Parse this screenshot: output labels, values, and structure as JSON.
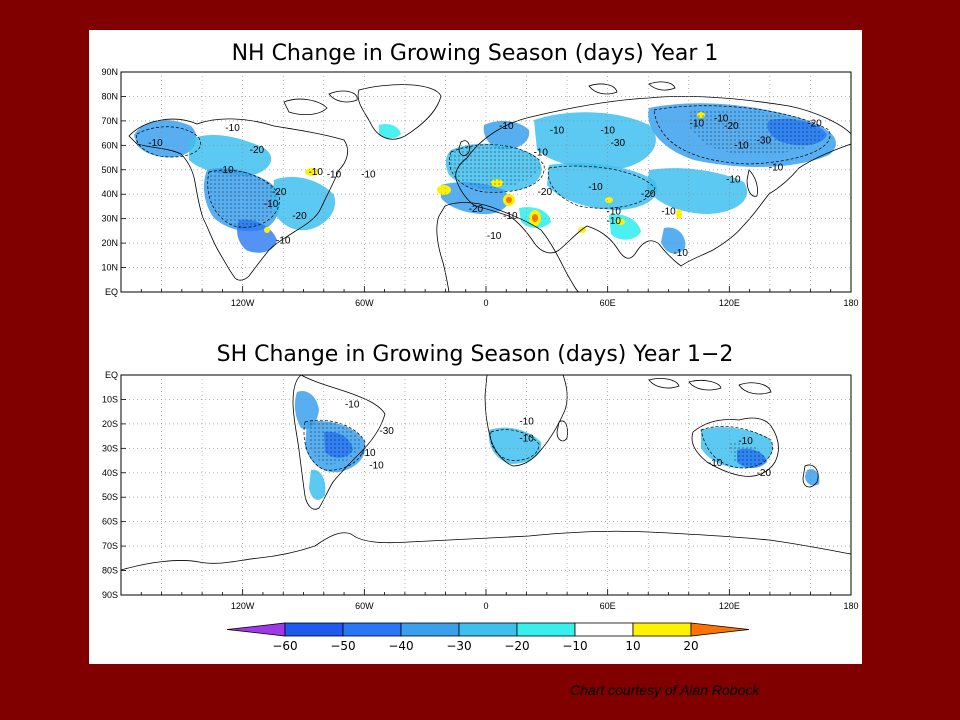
{
  "chart_data": [
    {
      "type": "heatmap",
      "title": "NH Change in Growing Season (days) Year 1",
      "xlim": [
        -180,
        180
      ],
      "ylim": [
        0,
        90
      ],
      "x_ticks": [
        "120W",
        "60W",
        "0",
        "60E",
        "120E",
        "180"
      ],
      "x_tick_values": [
        -120,
        -60,
        0,
        60,
        120,
        180
      ],
      "y_ticks": [
        "EQ",
        "10N",
        "20N",
        "30N",
        "40N",
        "50N",
        "60N",
        "70N",
        "80N",
        "90N"
      ],
      "y_tick_values": [
        0,
        10,
        20,
        30,
        40,
        50,
        60,
        70,
        80,
        90
      ],
      "contour_labels": [
        {
          "text": "-10",
          "lon": -163,
          "lat": 61
        },
        {
          "text": "-10",
          "lon": -125,
          "lat": 67
        },
        {
          "text": "-20",
          "lon": -113,
          "lat": 58
        },
        {
          "text": "-10",
          "lon": -128,
          "lat": 50
        },
        {
          "text": "-20",
          "lon": -102,
          "lat": 41
        },
        {
          "text": "-10",
          "lon": -106,
          "lat": 36
        },
        {
          "text": "-10",
          "lon": -84,
          "lat": 49
        },
        {
          "text": "-10",
          "lon": -75,
          "lat": 48
        },
        {
          "text": "-20",
          "lon": -92,
          "lat": 31
        },
        {
          "text": "-10",
          "lon": -100,
          "lat": 21
        },
        {
          "text": "-10",
          "lon": -58,
          "lat": 48
        },
        {
          "text": "-10",
          "lon": 10,
          "lat": 68
        },
        {
          "text": "-10",
          "lon": 35,
          "lat": 66
        },
        {
          "text": "-10",
          "lon": 60,
          "lat": 66
        },
        {
          "text": "-10",
          "lon": 27,
          "lat": 57
        },
        {
          "text": "-30",
          "lon": 65,
          "lat": 61
        },
        {
          "text": "-20",
          "lon": 29,
          "lat": 41
        },
        {
          "text": "-20",
          "lon": 80,
          "lat": 40
        },
        {
          "text": "-10",
          "lon": 54,
          "lat": 43
        },
        {
          "text": "-20",
          "lon": -5,
          "lat": 34
        },
        {
          "text": "-10",
          "lon": 4,
          "lat": 23
        },
        {
          "text": "-10",
          "lon": 12,
          "lat": 31
        },
        {
          "text": "-10",
          "lon": 63,
          "lat": 33
        },
        {
          "text": "-10",
          "lon": 63,
          "lat": 29
        },
        {
          "text": "-10",
          "lon": 90,
          "lat": 33
        },
        {
          "text": "-10",
          "lon": 96,
          "lat": 16
        },
        {
          "text": "-10",
          "lon": 122,
          "lat": 46
        },
        {
          "text": "-10",
          "lon": 104,
          "lat": 69
        },
        {
          "text": "-10",
          "lon": 116,
          "lat": 71
        },
        {
          "text": "-20",
          "lon": 121,
          "lat": 68
        },
        {
          "text": "-10",
          "lon": 126,
          "lat": 60
        },
        {
          "text": "-30",
          "lon": 137,
          "lat": 62
        },
        {
          "text": "-20",
          "lon": 162,
          "lat": 69
        },
        {
          "text": "-10",
          "lon": 143,
          "lat": 51
        }
      ]
    },
    {
      "type": "heatmap",
      "title": "SH Change in Growing Season (days) Year 1−2",
      "xlim": [
        -180,
        180
      ],
      "ylim": [
        -90,
        0
      ],
      "x_ticks": [
        "120W",
        "60W",
        "0",
        "60E",
        "120E",
        "180"
      ],
      "x_tick_values": [
        -120,
        -60,
        0,
        60,
        120,
        180
      ],
      "y_ticks": [
        "EQ",
        "10S",
        "20S",
        "30S",
        "40S",
        "50S",
        "60S",
        "70S",
        "80S",
        "90S"
      ],
      "y_tick_values": [
        0,
        -10,
        -20,
        -30,
        -40,
        -50,
        -60,
        -70,
        -80,
        -90
      ],
      "contour_labels": [
        {
          "text": "-10",
          "lon": -66,
          "lat": -12
        },
        {
          "text": "-30",
          "lon": -49,
          "lat": -23
        },
        {
          "text": "-10",
          "lon": -58,
          "lat": -32
        },
        {
          "text": "-10",
          "lon": -54,
          "lat": -37
        },
        {
          "text": "-10",
          "lon": 20,
          "lat": -19
        },
        {
          "text": "-10",
          "lon": 20,
          "lat": -26
        },
        {
          "text": "-10",
          "lon": 128,
          "lat": -27
        },
        {
          "text": "-10",
          "lon": 113,
          "lat": -36
        },
        {
          "text": "-20",
          "lon": 137,
          "lat": -40
        }
      ]
    }
  ],
  "colorbar": {
    "labels": [
      "−60",
      "−50",
      "−40",
      "−30",
      "−20",
      "−10",
      "10",
      "20"
    ],
    "colors": [
      "#9f38e8",
      "#1e5af0",
      "#2878f5",
      "#3aa0ee",
      "#3ec0ee",
      "#37f0ee",
      "#ffffff",
      "#fff200",
      "#ff7200"
    ]
  },
  "credit": "Chart courtesy of Alan Robock"
}
